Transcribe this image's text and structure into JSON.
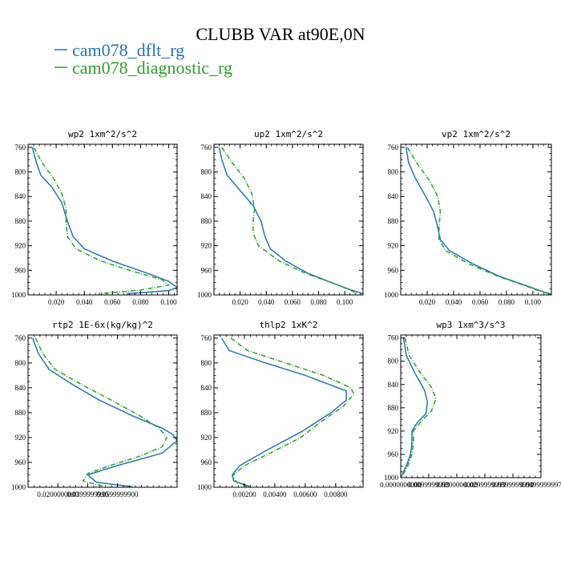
{
  "figure": {
    "title": "CLUBB VAR at90E,0N",
    "legend": [
      {
        "name": "cam078_dflt_rg",
        "color": "#1f77b4",
        "dash": "solid"
      },
      {
        "name": "cam078_diagnostic_rg",
        "color": "#2ca02c",
        "dash": "dashdot"
      }
    ]
  },
  "chart_data": [
    {
      "type": "line",
      "title": "wp2  1xm^2/s^2",
      "xlim": [
        0.0,
        0.106
      ],
      "ylim": [
        1000,
        755
      ],
      "xticks": [
        0.02,
        0.04,
        0.06,
        0.08,
        0.1
      ],
      "xtick_labels": [
        "0.020",
        "0.040",
        "0.060",
        "0.080",
        "0.100"
      ],
      "yticks": [
        760,
        800,
        840,
        880,
        920,
        960,
        1000
      ],
      "series": [
        {
          "name": "cam078_dflt_rg",
          "points": [
            [
              0.003,
              760
            ],
            [
              0.006,
              785
            ],
            [
              0.009,
              805
            ],
            [
              0.017,
              825
            ],
            [
              0.024,
              850
            ],
            [
              0.028,
              880
            ],
            [
              0.032,
              905
            ],
            [
              0.04,
              925
            ],
            [
              0.06,
              945
            ],
            [
              0.085,
              965
            ],
            [
              0.1,
              978
            ],
            [
              0.106,
              988
            ],
            [
              0.1,
              993
            ],
            [
              0.07,
              998
            ]
          ]
        },
        {
          "name": "cam078_diagnostic_rg",
          "points": [
            [
              0.004,
              760
            ],
            [
              0.01,
              785
            ],
            [
              0.018,
              810
            ],
            [
              0.024,
              835
            ],
            [
              0.027,
              860
            ],
            [
              0.027,
              880
            ],
            [
              0.028,
              905
            ],
            [
              0.034,
              925
            ],
            [
              0.052,
              945
            ],
            [
              0.075,
              962
            ],
            [
              0.095,
              975
            ],
            [
              0.1,
              984
            ],
            [
              0.08,
              992
            ],
            [
              0.05,
              998
            ]
          ]
        }
      ]
    },
    {
      "type": "line",
      "title": "up2  1xm^2/s^2",
      "xlim": [
        0.0,
        0.114
      ],
      "ylim": [
        1000,
        755
      ],
      "xticks": [
        0.02,
        0.04,
        0.06,
        0.08,
        0.1
      ],
      "xtick_labels": [
        "0.020",
        "0.040",
        "0.060",
        "0.080",
        "0.100"
      ],
      "yticks": [
        760,
        800,
        840,
        880,
        920,
        960,
        1000
      ],
      "series": [
        {
          "name": "cam078_dflt_rg",
          "points": [
            [
              0.004,
              760
            ],
            [
              0.006,
              780
            ],
            [
              0.01,
              805
            ],
            [
              0.02,
              830
            ],
            [
              0.03,
              855
            ],
            [
              0.036,
              880
            ],
            [
              0.039,
              905
            ],
            [
              0.043,
              925
            ],
            [
              0.055,
              945
            ],
            [
              0.072,
              965
            ],
            [
              0.09,
              980
            ],
            [
              0.105,
              992
            ],
            [
              0.114,
              998
            ]
          ]
        },
        {
          "name": "cam078_diagnostic_rg",
          "points": [
            [
              0.006,
              760
            ],
            [
              0.014,
              785
            ],
            [
              0.023,
              810
            ],
            [
              0.029,
              835
            ],
            [
              0.031,
              860
            ],
            [
              0.03,
              880
            ],
            [
              0.03,
              900
            ],
            [
              0.034,
              920
            ],
            [
              0.05,
              945
            ],
            [
              0.07,
              965
            ],
            [
              0.09,
              980
            ],
            [
              0.104,
              992
            ],
            [
              0.11,
              998
            ]
          ]
        }
      ]
    },
    {
      "type": "line",
      "title": "vp2  1xm^2/s^2",
      "xlim": [
        0.0,
        0.114
      ],
      "ylim": [
        1000,
        755
      ],
      "xticks": [
        0.02,
        0.04,
        0.06,
        0.08,
        0.1
      ],
      "xtick_labels": [
        "0.020",
        "0.040",
        "0.060",
        "0.080",
        "0.100"
      ],
      "yticks": [
        760,
        800,
        840,
        880,
        920,
        960,
        1000
      ],
      "series": [
        {
          "name": "cam078_dflt_rg",
          "points": [
            [
              0.004,
              760
            ],
            [
              0.006,
              785
            ],
            [
              0.011,
              810
            ],
            [
              0.019,
              840
            ],
            [
              0.025,
              865
            ],
            [
              0.028,
              890
            ],
            [
              0.03,
              910
            ],
            [
              0.037,
              928
            ],
            [
              0.055,
              950
            ],
            [
              0.075,
              970
            ],
            [
              0.095,
              985
            ],
            [
              0.108,
              995
            ],
            [
              0.114,
              999
            ]
          ]
        },
        {
          "name": "cam078_diagnostic_rg",
          "points": [
            [
              0.005,
              760
            ],
            [
              0.012,
              785
            ],
            [
              0.022,
              815
            ],
            [
              0.028,
              840
            ],
            [
              0.03,
              865
            ],
            [
              0.029,
              890
            ],
            [
              0.029,
              910
            ],
            [
              0.034,
              928
            ],
            [
              0.052,
              950
            ],
            [
              0.074,
              970
            ],
            [
              0.094,
              985
            ],
            [
              0.107,
              995
            ],
            [
              0.113,
              999
            ]
          ]
        }
      ]
    },
    {
      "type": "line",
      "title": "rtp2  1E-6x(kg/kg)^2",
      "xlim": [
        0.0,
        0.1
      ],
      "ylim": [
        1000,
        755
      ],
      "xticks": [
        0.02,
        0.04,
        0.06
      ],
      "xtick_labels": [
        "0.0200000000",
        "0.0399999990",
        "0.0599999900"
      ],
      "yticks": [
        760,
        800,
        840,
        880,
        920,
        960,
        1000
      ],
      "series": [
        {
          "name": "cam078_dflt_rg",
          "points": [
            [
              0.003,
              760
            ],
            [
              0.007,
              785
            ],
            [
              0.014,
              810
            ],
            [
              0.03,
              835
            ],
            [
              0.048,
              860
            ],
            [
              0.07,
              885
            ],
            [
              0.09,
              905
            ],
            [
              0.097,
              915
            ],
            [
              0.1,
              925
            ],
            [
              0.09,
              945
            ],
            [
              0.06,
              965
            ],
            [
              0.04,
              980
            ],
            [
              0.046,
              992
            ],
            [
              0.07,
              999
            ]
          ]
        },
        {
          "name": "cam078_diagnostic_rg",
          "points": [
            [
              0.005,
              760
            ],
            [
              0.01,
              785
            ],
            [
              0.018,
              810
            ],
            [
              0.036,
              835
            ],
            [
              0.056,
              860
            ],
            [
              0.075,
              885
            ],
            [
              0.088,
              905
            ],
            [
              0.093,
              920
            ],
            [
              0.09,
              935
            ],
            [
              0.075,
              950
            ],
            [
              0.055,
              965
            ],
            [
              0.04,
              978
            ],
            [
              0.037,
              990
            ],
            [
              0.05,
              998
            ]
          ]
        }
      ]
    },
    {
      "type": "line",
      "title": "thlp2  1xK^2",
      "xlim": [
        0.0,
        0.0098
      ],
      "ylim": [
        1000,
        755
      ],
      "xticks": [
        0.002,
        0.004,
        0.006,
        0.008
      ],
      "xtick_labels": [
        "0.00200",
        "0.00400",
        "0.00600",
        "0.00800"
      ],
      "yticks": [
        760,
        800,
        840,
        880,
        920,
        960,
        1000
      ],
      "series": [
        {
          "name": "cam078_dflt_rg",
          "points": [
            [
              0.0005,
              760
            ],
            [
              0.001,
              780
            ],
            [
              0.0034,
              800
            ],
            [
              0.006,
              820
            ],
            [
              0.0087,
              845
            ],
            [
              0.0087,
              860
            ],
            [
              0.0077,
              880
            ],
            [
              0.0058,
              910
            ],
            [
              0.0035,
              940
            ],
            [
              0.0017,
              965
            ],
            [
              0.0012,
              980
            ],
            [
              0.0013,
              990
            ],
            [
              0.0024,
              999
            ]
          ]
        },
        {
          "name": "cam078_diagnostic_rg",
          "points": [
            [
              0.0011,
              760
            ],
            [
              0.0022,
              780
            ],
            [
              0.0047,
              800
            ],
            [
              0.0072,
              820
            ],
            [
              0.009,
              840
            ],
            [
              0.0092,
              850
            ],
            [
              0.0085,
              870
            ],
            [
              0.007,
              895
            ],
            [
              0.0057,
              920
            ],
            [
              0.0037,
              945
            ],
            [
              0.002,
              965
            ],
            [
              0.0012,
              982
            ],
            [
              0.0015,
              992
            ],
            [
              0.0022,
              999
            ]
          ]
        }
      ]
    },
    {
      "type": "line",
      "title": "wp3  1xm^3/s^3",
      "xlim": [
        0.0,
        0.05
      ],
      "ylim": [
        1000,
        755
      ],
      "xticks": [
        0.0,
        0.01,
        0.02,
        0.03,
        0.04,
        0.05
      ],
      "xtick_labels": [
        "0.0000000000",
        "0.0099999999",
        "0.0200000000",
        "0.0299999999",
        "0.0399999999",
        "0.0499999997"
      ],
      "yticks": [
        760,
        800,
        840,
        880,
        920,
        960,
        1000
      ],
      "series": [
        {
          "name": "cam078_dflt_rg",
          "points": [
            [
              0.001,
              760
            ],
            [
              0.002,
              790
            ],
            [
              0.005,
              820
            ],
            [
              0.0085,
              850
            ],
            [
              0.0095,
              870
            ],
            [
              0.009,
              890
            ],
            [
              0.006,
              905
            ],
            [
              0.004,
              920
            ],
            [
              0.004,
              940
            ],
            [
              0.0035,
              960
            ],
            [
              0.002,
              980
            ],
            [
              0.0005,
              995
            ],
            [
              0.0,
              1000
            ]
          ]
        },
        {
          "name": "cam078_diagnostic_rg",
          "points": [
            [
              0.0015,
              760
            ],
            [
              0.003,
              790
            ],
            [
              0.007,
              820
            ],
            [
              0.011,
              845
            ],
            [
              0.0125,
              865
            ],
            [
              0.011,
              885
            ],
            [
              0.007,
              905
            ],
            [
              0.0045,
              920
            ],
            [
              0.0045,
              940
            ],
            [
              0.004,
              960
            ],
            [
              0.0025,
              980
            ],
            [
              0.0008,
              995
            ],
            [
              0.0,
              1000
            ]
          ]
        }
      ]
    }
  ]
}
